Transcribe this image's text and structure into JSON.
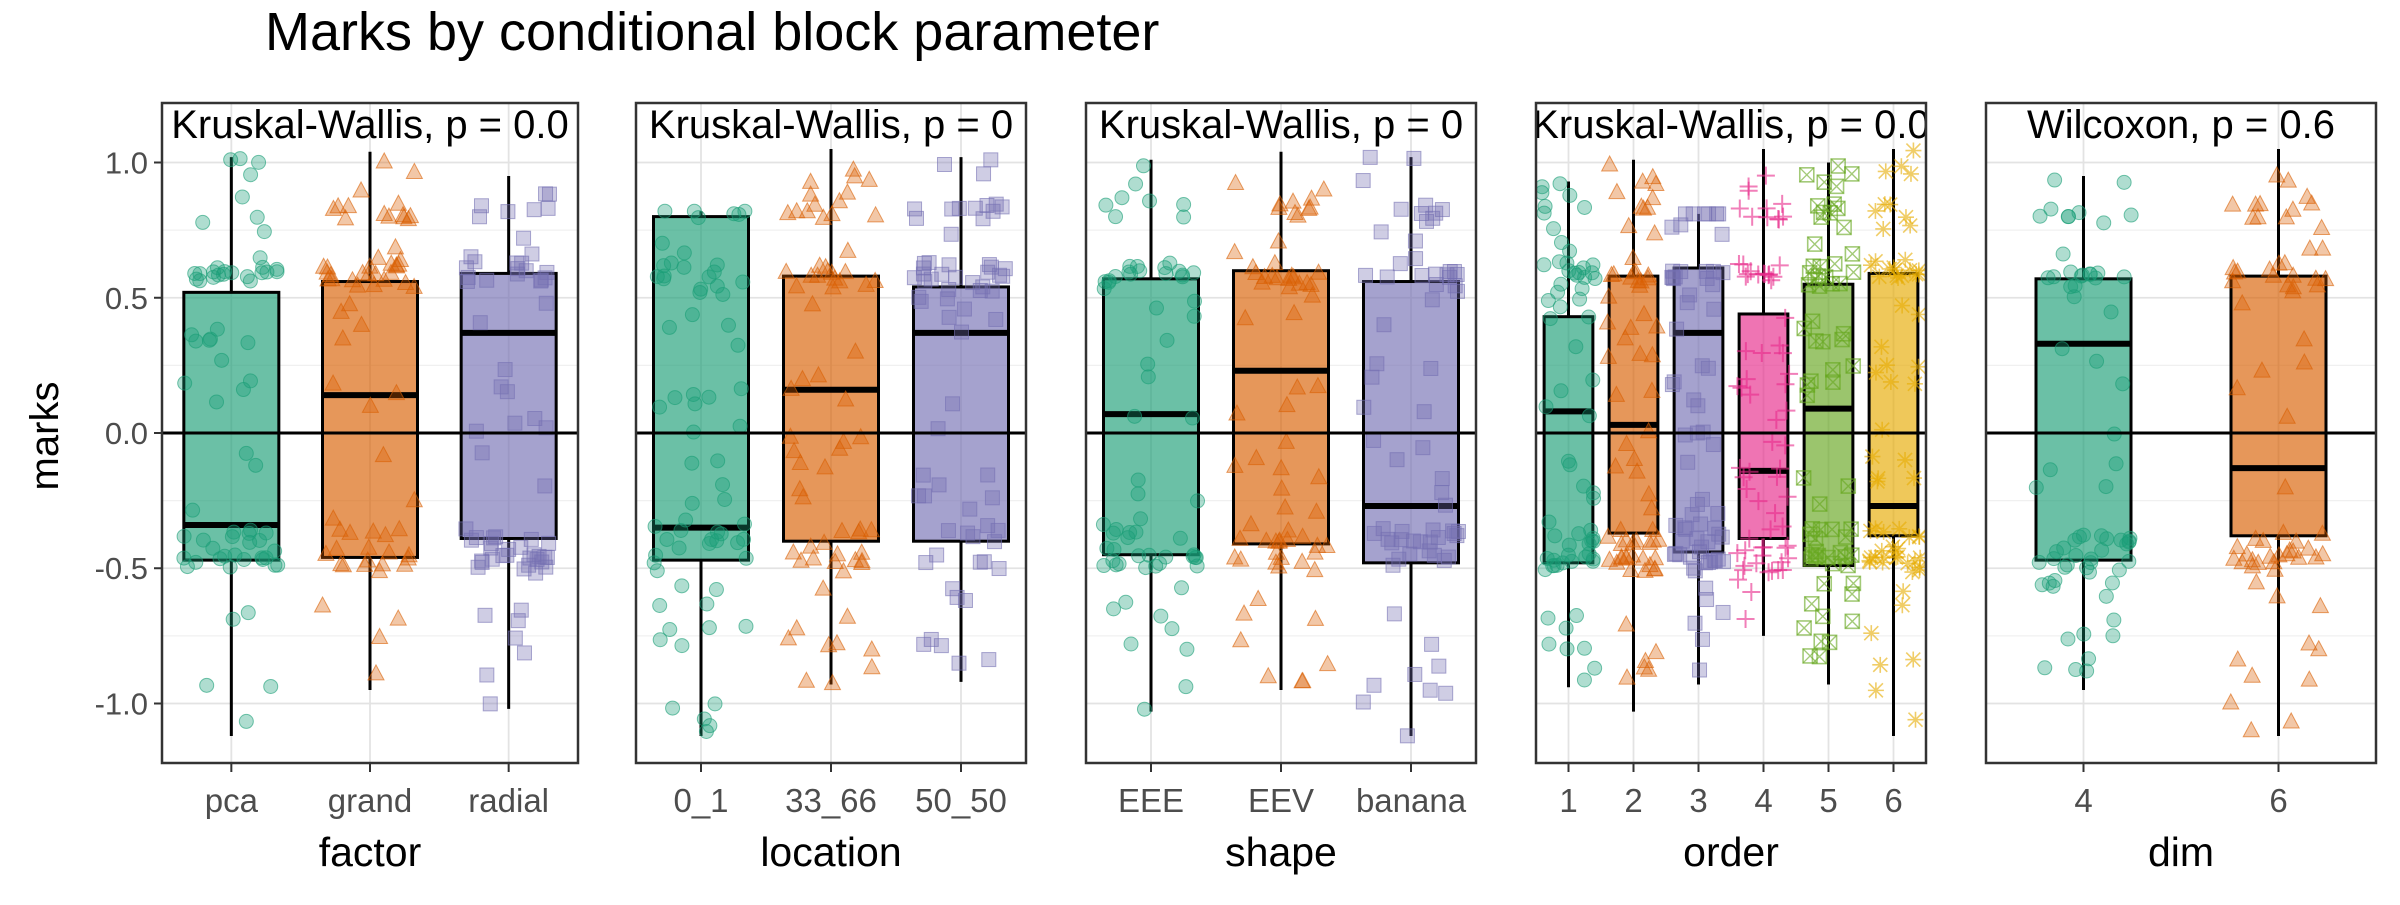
{
  "chart_data": {
    "type": "boxplot",
    "title": "Marks by conditional block parameter",
    "ylabel": "marks",
    "ylim": [
      -1.22,
      1.22
    ],
    "y_ticks": [
      1.0,
      0.5,
      0.0,
      -0.5,
      -1.0
    ],
    "y_tick_labels": [
      "1.0",
      "0.5",
      "0.0",
      "-0.5",
      "-1.0"
    ],
    "reference_line_y": 0,
    "grid": true,
    "legend": "none",
    "palette": [
      "#1b9e77",
      "#d95f02",
      "#7570b3",
      "#e7298a",
      "#66a61e",
      "#e6ab02"
    ],
    "panels": [
      {
        "xlabel": "factor",
        "test_label": "Kruskal-Wallis, p = 0.0",
        "categories": [
          "pca",
          "grand",
          "radial"
        ],
        "boxes": [
          {
            "min": -1.12,
            "q1": -0.47,
            "median": -0.34,
            "q3": 0.52,
            "max": 1.02
          },
          {
            "min": -0.95,
            "q1": -0.46,
            "median": 0.14,
            "q3": 0.56,
            "max": 1.04
          },
          {
            "min": -1.02,
            "q1": -0.39,
            "median": 0.37,
            "q3": 0.59,
            "max": 0.95
          }
        ]
      },
      {
        "xlabel": "location",
        "test_label": "Kruskal-Wallis, p = 0",
        "categories": [
          "0_1",
          "33_66",
          "50_50"
        ],
        "boxes": [
          {
            "min": -1.12,
            "q1": -0.47,
            "median": -0.35,
            "q3": 0.8,
            "max": 0.82
          },
          {
            "min": -0.93,
            "q1": -0.4,
            "median": 0.16,
            "q3": 0.58,
            "max": 1.05
          },
          {
            "min": -0.92,
            "q1": -0.4,
            "median": 0.37,
            "q3": 0.54,
            "max": 1.02
          }
        ]
      },
      {
        "xlabel": "shape",
        "test_label": "Kruskal-Wallis, p = 0",
        "categories": [
          "EEE",
          "EEV",
          "banana"
        ],
        "boxes": [
          {
            "min": -1.03,
            "q1": -0.45,
            "median": 0.07,
            "q3": 0.57,
            "max": 1.01
          },
          {
            "min": -0.95,
            "q1": -0.41,
            "median": 0.23,
            "q3": 0.6,
            "max": 1.04
          },
          {
            "min": -1.12,
            "q1": -0.48,
            "median": -0.27,
            "q3": 0.56,
            "max": 1.02
          }
        ]
      },
      {
        "xlabel": "order",
        "test_label": "Kruskal-Wallis, p = 0.0",
        "categories": [
          "1",
          "2",
          "3",
          "4",
          "5",
          "6"
        ],
        "boxes": [
          {
            "min": -0.94,
            "q1": -0.48,
            "median": 0.08,
            "q3": 0.43,
            "max": 0.93
          },
          {
            "min": -1.03,
            "q1": -0.37,
            "median": 0.03,
            "q3": 0.58,
            "max": 1.01
          },
          {
            "min": -0.93,
            "q1": -0.44,
            "median": 0.37,
            "q3": 0.61,
            "max": 0.81
          },
          {
            "min": -0.75,
            "q1": -0.39,
            "median": -0.14,
            "q3": 0.44,
            "max": 1.05
          },
          {
            "min": -0.93,
            "q1": -0.49,
            "median": 0.09,
            "q3": 0.55,
            "max": 1.0
          },
          {
            "min": -1.12,
            "q1": -0.38,
            "median": -0.27,
            "q3": 0.59,
            "max": 1.05
          }
        ]
      },
      {
        "xlabel": "dim",
        "test_label": "Wilcoxon, p = 0.6",
        "categories": [
          "4",
          "6"
        ],
        "boxes": [
          {
            "min": -0.95,
            "q1": -0.47,
            "median": 0.33,
            "q3": 0.57,
            "max": 0.95
          },
          {
            "min": -1.12,
            "q1": -0.38,
            "median": -0.13,
            "q3": 0.58,
            "max": 1.05
          }
        ]
      }
    ]
  }
}
